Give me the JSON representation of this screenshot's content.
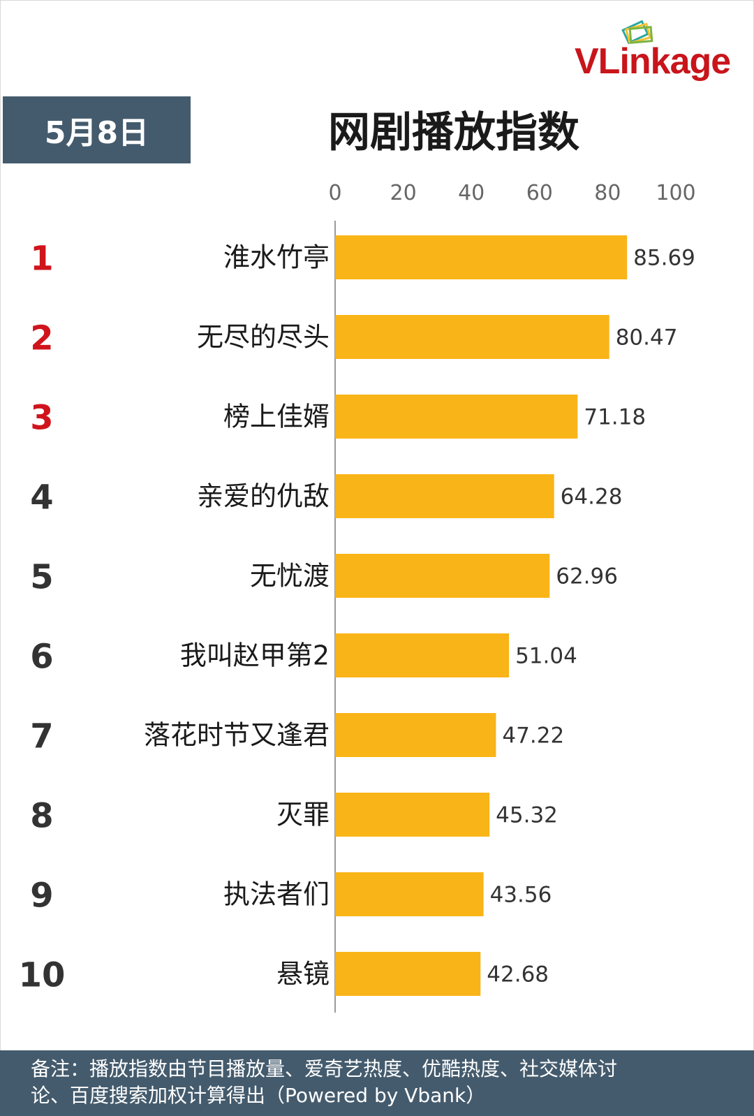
{
  "brand": {
    "name": "VLinkage",
    "logo_icon": "stacked-frames-icon",
    "colors": {
      "red": "#c8151b",
      "teal": "#2aa8a0",
      "yellow": "#f2c12e",
      "green": "#7cb342"
    }
  },
  "header": {
    "date": "5月8日",
    "title": "网剧播放指数"
  },
  "chart_data": {
    "type": "bar",
    "orientation": "horizontal",
    "title": "网剧播放指数",
    "xlim": [
      0,
      100
    ],
    "x_ticks": [
      "0",
      "20",
      "40",
      "60",
      "80",
      "100"
    ],
    "grid": false,
    "bar_color": "#f9b418",
    "rank_colors": {
      "top3": "#d0141c",
      "rest": "#333333"
    },
    "ranks": [
      "1",
      "2",
      "3",
      "4",
      "5",
      "6",
      "7",
      "8",
      "9",
      "10"
    ],
    "categories": [
      "淮水竹亭",
      "无尽的尽头",
      "榜上佳婿",
      "亲爱的仇敌",
      "无忧渡",
      "我叫赵甲第2",
      "落花时节又逢君",
      "灭罪",
      "执法者们",
      "悬镜"
    ],
    "values": [
      85.69,
      80.47,
      71.18,
      64.28,
      62.96,
      51.04,
      47.22,
      45.32,
      43.56,
      42.68
    ],
    "value_labels": [
      "85.69",
      "80.47",
      "71.18",
      "64.28",
      "62.96",
      "51.04",
      "47.22",
      "45.32",
      "43.56",
      "42.68"
    ]
  },
  "footer": {
    "note_line1": "备注：播放指数由节目播放量、爱奇艺热度、优酷热度、社交媒体讨",
    "note_line2": "论、百度搜索加权计算得出（Powered by Vbank）"
  }
}
